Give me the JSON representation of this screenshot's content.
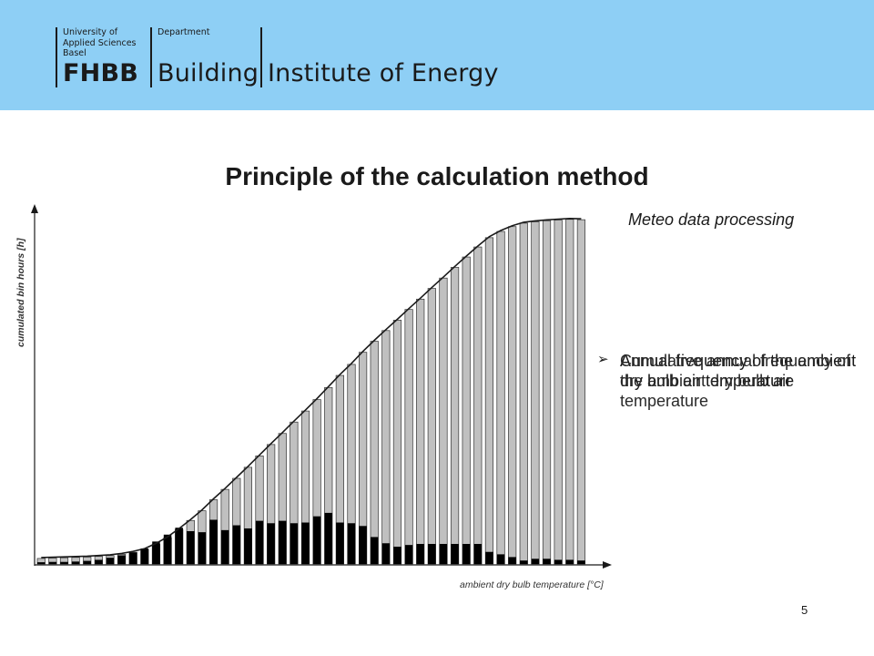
{
  "header": {
    "logo_line1": "University of",
    "logo_line2": "Applied Sciences",
    "logo_line3": "Basel",
    "logo_fhbb": "FHBB",
    "logo_department": "Department",
    "logo_building": "Building",
    "logo_institute": "Institute of Energy",
    "background_color": "#8ecff5"
  },
  "slide": {
    "title": "Principle of the calculation method",
    "subtitle": "Meteo data processing",
    "bullet_1": "Annual frequency of the ambient dry bulb air temperature",
    "bullet_2": "Cumulative annual frequency of the ambient dry bulb air temperature",
    "page_number": "5"
  },
  "chart_data": {
    "type": "bar",
    "title": "",
    "xlabel": "ambient dry bulb temperature [°C]",
    "ylabel": "cumulated bin hours [h]",
    "grid": false,
    "legend": "none",
    "bin_count": 48,
    "ylim": [
      0,
      1.0
    ],
    "series": [
      {
        "role": "annual_frequency",
        "color": "#000000",
        "values": [
          0.005,
          0.006,
          0.006,
          0.007,
          0.009,
          0.012,
          0.018,
          0.025,
          0.033,
          0.045,
          0.065,
          0.085,
          0.105,
          0.095,
          0.092,
          0.128,
          0.098,
          0.112,
          0.103,
          0.125,
          0.118,
          0.125,
          0.118,
          0.12,
          0.138,
          0.148,
          0.12,
          0.118,
          0.11,
          0.078,
          0.06,
          0.05,
          0.055,
          0.058,
          0.058,
          0.058,
          0.058,
          0.058,
          0.058,
          0.035,
          0.028,
          0.02,
          0.01,
          0.015,
          0.015,
          0.012,
          0.012,
          0.01
        ]
      },
      {
        "role": "cumulative_frequency",
        "color": "#c0c0c0",
        "values": [
          0.016,
          0.017,
          0.018,
          0.019,
          0.02,
          0.022,
          0.024,
          0.028,
          0.034,
          0.042,
          0.057,
          0.076,
          0.1,
          0.126,
          0.154,
          0.186,
          0.216,
          0.248,
          0.28,
          0.313,
          0.346,
          0.378,
          0.411,
          0.443,
          0.476,
          0.511,
          0.546,
          0.578,
          0.613,
          0.645,
          0.676,
          0.706,
          0.737,
          0.767,
          0.798,
          0.828,
          0.859,
          0.889,
          0.918,
          0.945,
          0.963,
          0.977,
          0.987,
          0.991,
          0.994,
          0.996,
          0.998,
          0.997
        ]
      }
    ]
  }
}
